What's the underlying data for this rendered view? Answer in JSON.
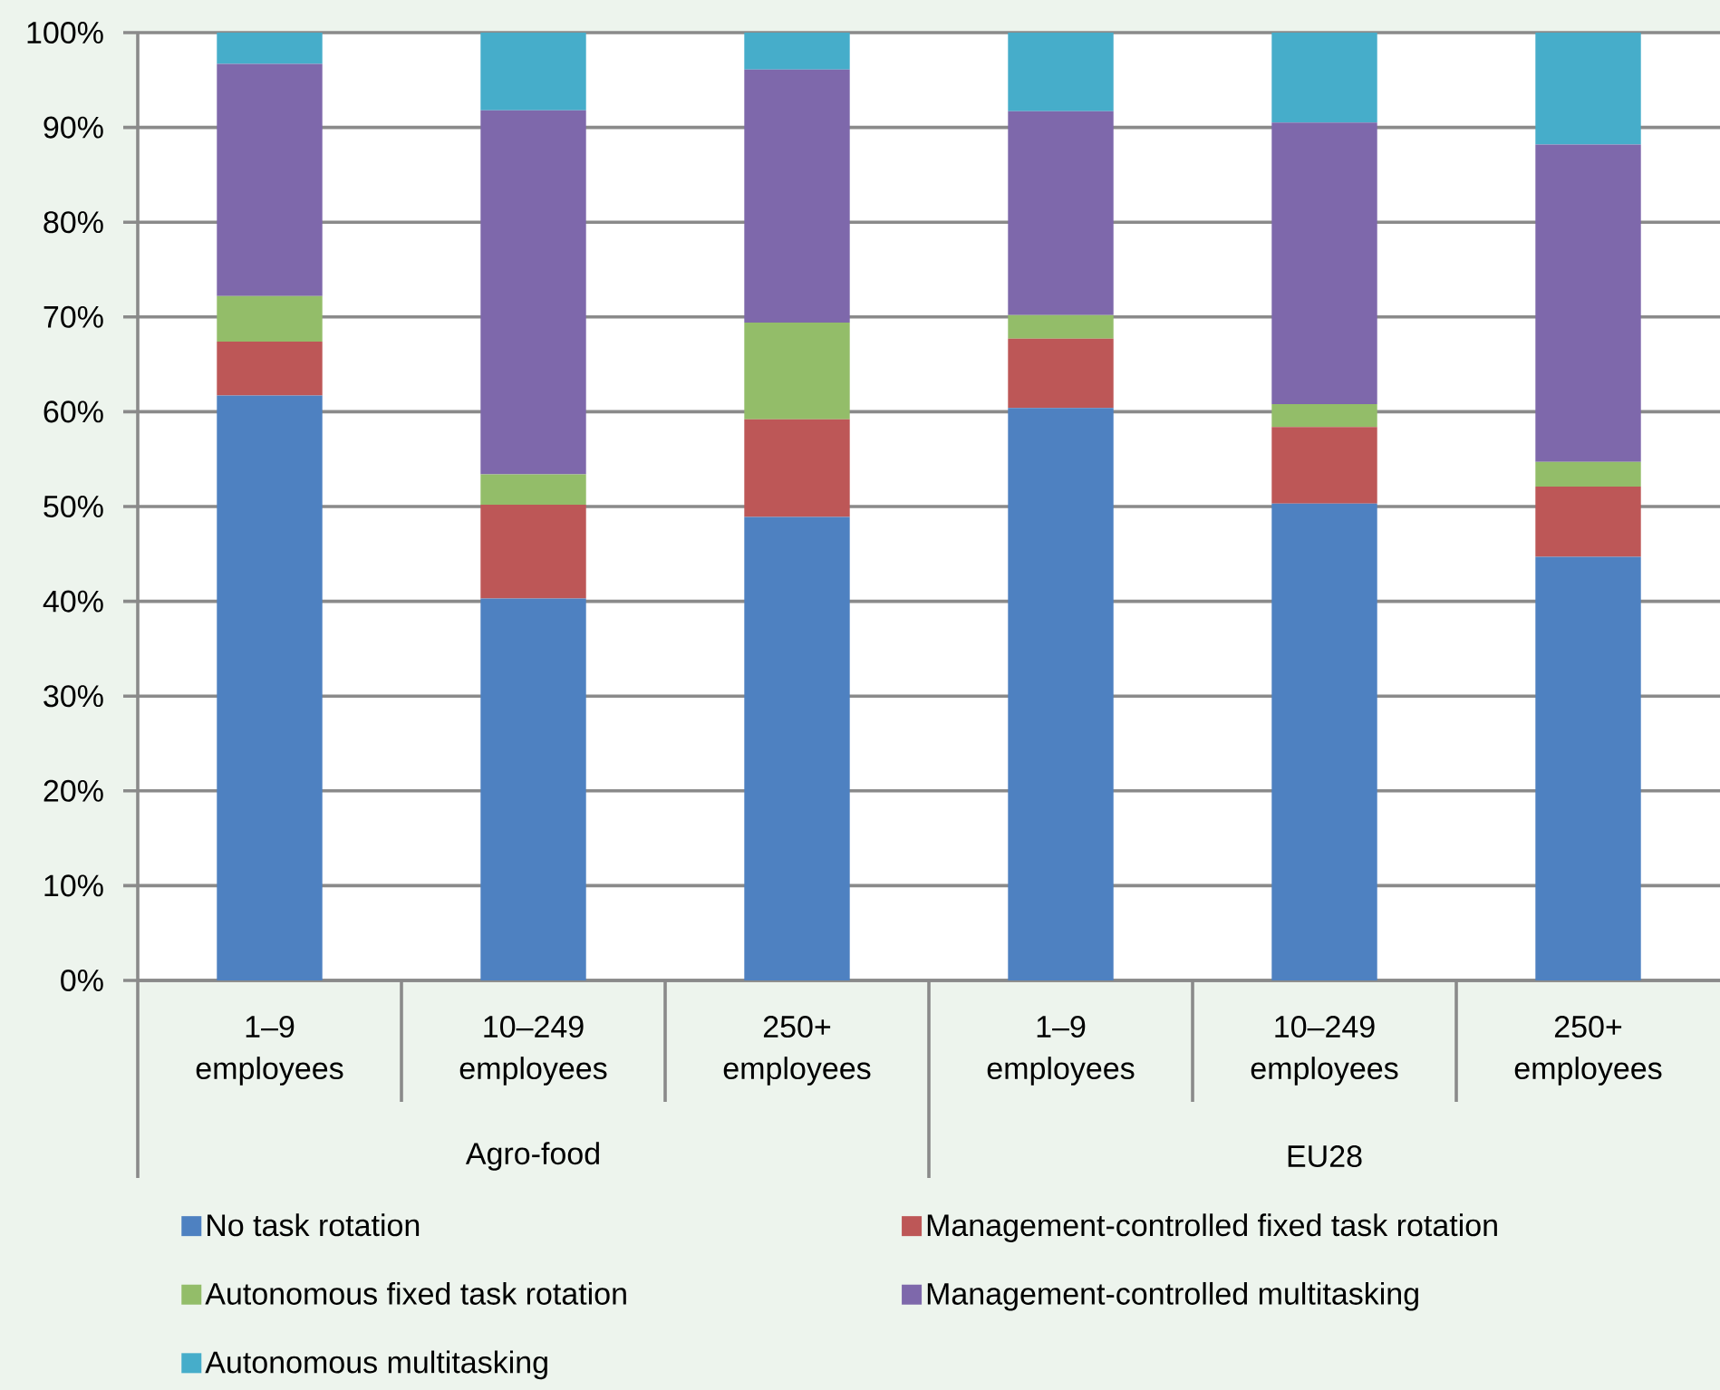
{
  "chart_data": {
    "type": "bar",
    "stacked": true,
    "categories": [
      "1–9 employees",
      "10–249 employees",
      "250+ employees",
      "1–9 employees",
      "10–249 employees",
      "250+ employees"
    ],
    "annotations": [
      "Agro-food",
      "EU28"
    ],
    "series": [
      {
        "name": "No task rotation",
        "color": "#4e81c1",
        "values": [
          61.7,
          40.3,
          48.9,
          60.4,
          50.3,
          44.7
        ]
      },
      {
        "name": "Management-controlled fixed task rotation",
        "color": "#bd5757",
        "values": [
          5.7,
          9.9,
          10.3,
          7.3,
          8.1,
          7.4
        ]
      },
      {
        "name": "Autonomous fixed task rotation",
        "color": "#93bd69",
        "values": [
          4.8,
          3.2,
          10.2,
          2.5,
          2.4,
          2.6
        ]
      },
      {
        "name": "Management-controlled multitasking",
        "color": "#7e68ab",
        "values": [
          24.5,
          38.4,
          26.7,
          21.5,
          29.7,
          33.5
        ]
      },
      {
        "name": "Autonomous multitasking",
        "color": "#46adca",
        "values": [
          3.3,
          8.2,
          3.9,
          8.3,
          9.5,
          11.8
        ]
      }
    ],
    "ylim": [
      0,
      100
    ],
    "yticks": [
      {
        "value": 0,
        "label": "0%"
      },
      {
        "value": 10,
        "label": "10%"
      },
      {
        "value": 20,
        "label": "20%"
      },
      {
        "value": 30,
        "label": "30%"
      },
      {
        "value": 40,
        "label": "40%"
      },
      {
        "value": 50,
        "label": "50%"
      },
      {
        "value": 60,
        "label": "60%"
      },
      {
        "value": 70,
        "label": "70%"
      },
      {
        "value": 80,
        "label": "80%"
      },
      {
        "value": 90,
        "label": "90%"
      },
      {
        "value": 100,
        "label": "100%"
      }
    ],
    "grid": "y",
    "legend": "bottom"
  }
}
